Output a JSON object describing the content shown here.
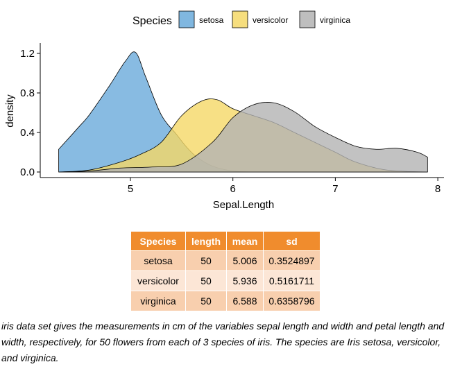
{
  "chart_data": {
    "type": "area",
    "subtype": "density",
    "xlabel": "Sepal.Length",
    "ylabel": "density",
    "xlim": [
      4.3,
      7.9
    ],
    "ylim": [
      0,
      1.25
    ],
    "xticks": [
      5,
      6,
      7,
      8
    ],
    "yticks": [
      0.0,
      0.4,
      0.8,
      1.2
    ],
    "ytick_labels": [
      "0.0",
      "0.4",
      "0.8",
      "1.2"
    ],
    "grid": false,
    "legend": {
      "title": "Species",
      "position": "top"
    },
    "series": [
      {
        "name": "setosa",
        "color": "#6aaadb",
        "x": [
          4.3,
          4.5,
          4.6,
          4.8,
          4.95,
          5.05,
          5.15,
          5.3,
          5.45,
          5.55,
          5.65,
          5.8,
          6.0,
          6.2,
          6.5,
          7.0,
          7.5,
          7.9
        ],
        "y": [
          0.23,
          0.46,
          0.58,
          0.88,
          1.12,
          1.21,
          0.96,
          0.58,
          0.38,
          0.25,
          0.15,
          0.06,
          0.01,
          0,
          0,
          0,
          0,
          0
        ]
      },
      {
        "name": "versicolor",
        "color": "#f5d867",
        "x": [
          4.3,
          4.6,
          4.9,
          5.1,
          5.3,
          5.5,
          5.7,
          5.85,
          6.0,
          6.2,
          6.4,
          6.6,
          6.8,
          7.0,
          7.2,
          7.5,
          7.9
        ],
        "y": [
          0,
          0.02,
          0.1,
          0.18,
          0.3,
          0.57,
          0.72,
          0.73,
          0.64,
          0.57,
          0.5,
          0.4,
          0.3,
          0.2,
          0.1,
          0.02,
          0
        ]
      },
      {
        "name": "virginica",
        "color": "#b3b3b3",
        "x": [
          4.3,
          4.6,
          4.9,
          5.2,
          5.5,
          5.8,
          6.0,
          6.2,
          6.4,
          6.6,
          6.8,
          7.0,
          7.2,
          7.4,
          7.6,
          7.8,
          7.9
        ],
        "y": [
          0,
          0.01,
          0.04,
          0.05,
          0.08,
          0.3,
          0.55,
          0.68,
          0.7,
          0.61,
          0.46,
          0.35,
          0.26,
          0.23,
          0.24,
          0.2,
          0.15
        ]
      }
    ]
  },
  "table": {
    "headers": [
      "Species",
      "length",
      "mean",
      "sd"
    ],
    "rows": [
      [
        "setosa",
        "50",
        "5.006",
        "0.3524897"
      ],
      [
        "versicolor",
        "50",
        "5.936",
        "0.5161711"
      ],
      [
        "virginica",
        "50",
        "6.588",
        "0.6358796"
      ]
    ],
    "header_color": "#f08c2d",
    "row_colors": [
      "#f8cfae",
      "#fce6d6"
    ]
  },
  "caption": "iris data set gives the measurements in cm of the variables sepal length and width and petal length and width, respectively, for 50 flowers from each of 3 species of iris. The species are Iris setosa, versicolor, and virginica."
}
